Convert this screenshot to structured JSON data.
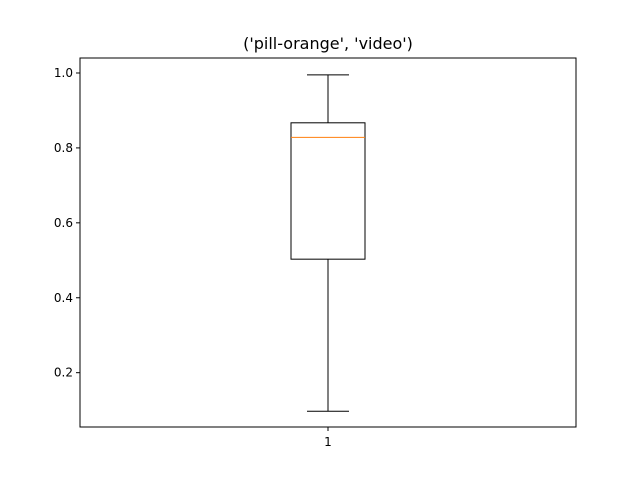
{
  "chart_data": {
    "type": "box",
    "title": "('pill-orange', 'video')",
    "xlabel": "",
    "ylabel": "",
    "categories": [
      "1"
    ],
    "boxes": [
      {
        "label": "1",
        "whisker_low": 0.097,
        "q1": 0.503,
        "median": 0.828,
        "q3": 0.867,
        "whisker_high": 0.995
      }
    ],
    "ylim": [
      0.055,
      1.04
    ],
    "yticks": [
      0.2,
      0.4,
      0.6,
      0.8,
      1.0
    ],
    "ytick_labels": [
      "0.2",
      "0.4",
      "0.6",
      "0.8",
      "1.0"
    ],
    "grid": false,
    "colors": {
      "box": "#000000",
      "median": "#ff7f0e",
      "axes": "#000000",
      "background": "#ffffff"
    }
  }
}
